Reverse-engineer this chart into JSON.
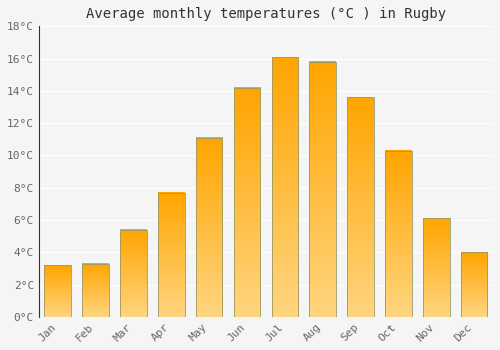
{
  "title": "Average monthly temperatures (°C ) in Rugby",
  "months": [
    "Jan",
    "Feb",
    "Mar",
    "Apr",
    "May",
    "Jun",
    "Jul",
    "Aug",
    "Sep",
    "Oct",
    "Nov",
    "Dec"
  ],
  "values": [
    3.2,
    3.3,
    5.4,
    7.7,
    11.1,
    14.2,
    16.1,
    15.8,
    13.6,
    10.3,
    6.1,
    4.0
  ],
  "bar_color_top": "#FFA500",
  "bar_color_bottom": "#FFD580",
  "bar_edge_color": "#999966",
  "ylim": [
    0,
    18
  ],
  "yticks": [
    0,
    2,
    4,
    6,
    8,
    10,
    12,
    14,
    16,
    18
  ],
  "ytick_labels": [
    "0°C",
    "2°C",
    "4°C",
    "6°C",
    "8°C",
    "10°C",
    "12°C",
    "14°C",
    "16°C",
    "18°C"
  ],
  "background_color": "#f5f5f5",
  "plot_bg_color": "#f5f5f5",
  "grid_color": "#ffffff",
  "title_fontsize": 10,
  "tick_fontsize": 8,
  "tick_color": "#666666",
  "bar_width": 0.7
}
